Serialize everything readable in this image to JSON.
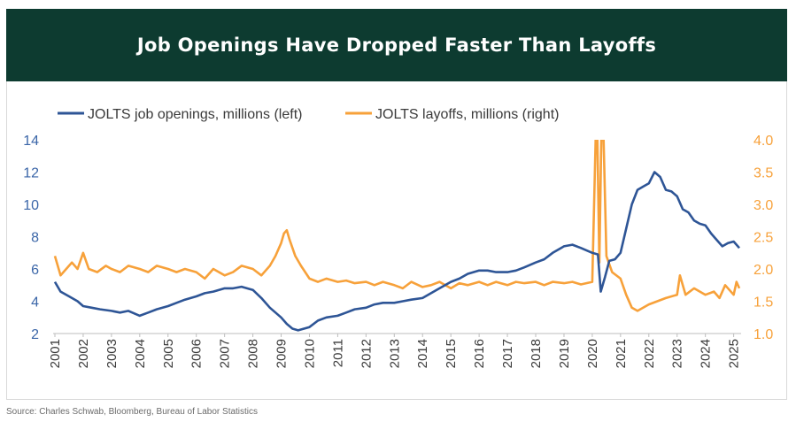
{
  "header": {
    "title": "Job Openings Have Dropped Faster Than Layoffs"
  },
  "source": "Source: Charles Schwab, Bloomberg, Bureau of Labor Statistics",
  "colors": {
    "header_bg": "#0d3b30",
    "openings": "#2e5596",
    "layoffs": "#f7a13a",
    "left_axis": "#3b66a8",
    "right_axis": "#f7a13a"
  },
  "chart_data": {
    "type": "line",
    "title": "Job Openings Have Dropped Faster Than Layoffs",
    "left_axis": {
      "label": "JOLTS job openings, millions",
      "ylim": [
        2,
        14
      ],
      "ticks": [
        2,
        4,
        6,
        8,
        10,
        12,
        14
      ]
    },
    "right_axis": {
      "label": "JOLTS layoffs, millions",
      "ylim": [
        1.0,
        4.0
      ],
      "ticks": [
        "1.0",
        "1.5",
        "2.0",
        "2.5",
        "3.0",
        "3.5",
        "4.0"
      ]
    },
    "x_ticks": [
      "2001",
      "2002",
      "2003",
      "2004",
      "2005",
      "2006",
      "2007",
      "2008",
      "2009",
      "2010",
      "2011",
      "2012",
      "2013",
      "2014",
      "2015",
      "2016",
      "2017",
      "2018",
      "2019",
      "2020",
      "2021",
      "2022",
      "2023",
      "2024",
      "2025"
    ],
    "legend_placement": "top-left",
    "series": [
      {
        "name": "JOLTS job openings, millions (left)",
        "axis": "left",
        "x": [
          2001.0,
          2001.2,
          2001.5,
          2001.8,
          2002.0,
          2002.3,
          2002.6,
          2003.0,
          2003.3,
          2003.6,
          2004.0,
          2004.3,
          2004.6,
          2005.0,
          2005.3,
          2005.6,
          2006.0,
          2006.3,
          2006.6,
          2007.0,
          2007.3,
          2007.6,
          2008.0,
          2008.3,
          2008.6,
          2009.0,
          2009.2,
          2009.4,
          2009.6,
          2010.0,
          2010.3,
          2010.6,
          2011.0,
          2011.3,
          2011.6,
          2012.0,
          2012.3,
          2012.6,
          2013.0,
          2013.3,
          2013.6,
          2014.0,
          2014.3,
          2014.6,
          2015.0,
          2015.3,
          2015.6,
          2016.0,
          2016.3,
          2016.6,
          2017.0,
          2017.3,
          2017.6,
          2018.0,
          2018.3,
          2018.6,
          2019.0,
          2019.3,
          2019.6,
          2020.0,
          2020.2,
          2020.3,
          2020.45,
          2020.6,
          2020.8,
          2021.0,
          2021.2,
          2021.4,
          2021.6,
          2021.8,
          2022.0,
          2022.2,
          2022.4,
          2022.6,
          2022.8,
          2023.0,
          2023.2,
          2023.4,
          2023.6,
          2023.8,
          2024.0,
          2024.2,
          2024.4,
          2024.6,
          2024.8,
          2025.0,
          2025.2
        ],
        "values": [
          5.2,
          4.6,
          4.3,
          4.0,
          3.7,
          3.6,
          3.5,
          3.4,
          3.3,
          3.4,
          3.1,
          3.3,
          3.5,
          3.7,
          3.9,
          4.1,
          4.3,
          4.5,
          4.6,
          4.8,
          4.8,
          4.9,
          4.7,
          4.2,
          3.6,
          3.0,
          2.6,
          2.3,
          2.2,
          2.4,
          2.8,
          3.0,
          3.1,
          3.3,
          3.5,
          3.6,
          3.8,
          3.9,
          3.9,
          4.0,
          4.1,
          4.2,
          4.5,
          4.8,
          5.2,
          5.4,
          5.7,
          5.9,
          5.9,
          5.8,
          5.8,
          5.9,
          6.1,
          6.4,
          6.6,
          7.0,
          7.4,
          7.5,
          7.3,
          7.0,
          6.9,
          4.6,
          5.5,
          6.5,
          6.6,
          7.0,
          8.5,
          10.0,
          10.9,
          11.1,
          11.3,
          12.0,
          11.7,
          10.9,
          10.8,
          10.5,
          9.7,
          9.5,
          9.0,
          8.8,
          8.7,
          8.2,
          7.8,
          7.4,
          7.6,
          7.7,
          7.3
        ]
      },
      {
        "name": "JOLTS layoffs, millions (right)",
        "axis": "right",
        "x": [
          2001.0,
          2001.2,
          2001.4,
          2001.6,
          2001.8,
          2002.0,
          2002.2,
          2002.5,
          2002.8,
          2003.0,
          2003.3,
          2003.6,
          2004.0,
          2004.3,
          2004.6,
          2005.0,
          2005.3,
          2005.6,
          2006.0,
          2006.3,
          2006.6,
          2007.0,
          2007.3,
          2007.6,
          2008.0,
          2008.3,
          2008.6,
          2008.8,
          2009.0,
          2009.1,
          2009.2,
          2009.3,
          2009.5,
          2009.7,
          2010.0,
          2010.3,
          2010.6,
          2011.0,
          2011.3,
          2011.6,
          2012.0,
          2012.3,
          2012.6,
          2013.0,
          2013.3,
          2013.6,
          2014.0,
          2014.3,
          2014.6,
          2015.0,
          2015.3,
          2015.6,
          2016.0,
          2016.3,
          2016.6,
          2017.0,
          2017.3,
          2017.6,
          2018.0,
          2018.3,
          2018.6,
          2019.0,
          2019.3,
          2019.6,
          2020.0,
          2020.12,
          2020.18,
          2020.25,
          2020.32,
          2020.4,
          2020.5,
          2020.7,
          2021.0,
          2021.2,
          2021.4,
          2021.6,
          2021.8,
          2022.0,
          2022.3,
          2022.6,
          2023.0,
          2023.1,
          2023.3,
          2023.6,
          2024.0,
          2024.3,
          2024.5,
          2024.7,
          2025.0,
          2025.1,
          2025.2
        ],
        "values": [
          2.2,
          1.9,
          2.0,
          2.1,
          2.0,
          2.25,
          2.0,
          1.95,
          2.05,
          2.0,
          1.95,
          2.05,
          2.0,
          1.95,
          2.05,
          2.0,
          1.95,
          2.0,
          1.95,
          1.85,
          2.0,
          1.9,
          1.95,
          2.05,
          2.0,
          1.9,
          2.05,
          2.2,
          2.4,
          2.55,
          2.6,
          2.45,
          2.2,
          2.05,
          1.85,
          1.8,
          1.85,
          1.8,
          1.82,
          1.78,
          1.8,
          1.75,
          1.8,
          1.75,
          1.7,
          1.8,
          1.72,
          1.75,
          1.8,
          1.7,
          1.78,
          1.75,
          1.8,
          1.75,
          1.8,
          1.75,
          1.8,
          1.78,
          1.8,
          1.75,
          1.8,
          1.78,
          1.8,
          1.76,
          1.8,
          4.0,
          4.0,
          2.1,
          4.0,
          4.0,
          2.2,
          1.95,
          1.85,
          1.6,
          1.4,
          1.35,
          1.4,
          1.45,
          1.5,
          1.55,
          1.6,
          1.9,
          1.6,
          1.7,
          1.6,
          1.65,
          1.55,
          1.75,
          1.6,
          1.8,
          1.7
        ]
      }
    ]
  }
}
